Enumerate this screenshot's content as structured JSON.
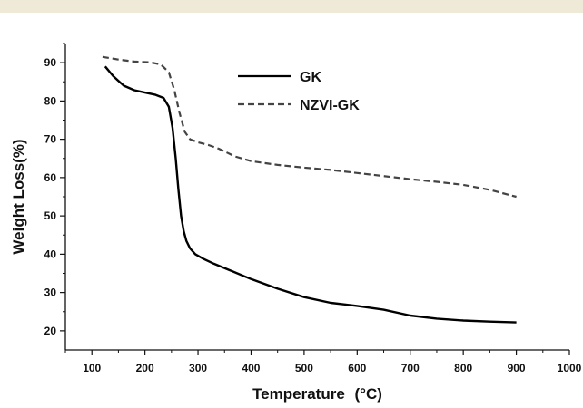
{
  "chart_data": {
    "type": "line",
    "xlabel": "Temperature",
    "xlabel_unit": "(°C)",
    "ylabel": "Weight Loss(%)",
    "xlim": [
      50,
      1000
    ],
    "ylim": [
      15,
      95
    ],
    "x_ticks": [
      100,
      200,
      300,
      400,
      500,
      600,
      700,
      800,
      900,
      1000
    ],
    "y_ticks": [
      20,
      30,
      40,
      50,
      60,
      70,
      80,
      90
    ],
    "grid": false,
    "legend_position": "top-center",
    "series": [
      {
        "name": "GK",
        "style": "solid",
        "color": "#000000",
        "x": [
          125,
          140,
          160,
          180,
          200,
          220,
          235,
          245,
          252,
          258,
          263,
          268,
          273,
          278,
          285,
          295,
          310,
          330,
          360,
          400,
          450,
          500,
          550,
          600,
          650,
          700,
          750,
          800,
          850,
          900
        ],
        "y": [
          89,
          86.5,
          84,
          82.8,
          82.2,
          81.6,
          80.8,
          78.5,
          73,
          65,
          57,
          50,
          46,
          43.5,
          41.5,
          40,
          38.8,
          37.5,
          35.8,
          33.5,
          31,
          28.8,
          27.3,
          26.5,
          25.5,
          24,
          23.2,
          22.7,
          22.4,
          22.2
        ]
      },
      {
        "name": "NZVI-GK",
        "style": "dashed",
        "color": "#444444",
        "x": [
          120,
          150,
          180,
          210,
          230,
          245,
          255,
          265,
          275,
          285,
          300,
          320,
          340,
          370,
          400,
          450,
          500,
          550,
          600,
          650,
          700,
          750,
          800,
          850,
          900
        ],
        "y": [
          91.5,
          90.8,
          90.3,
          90.1,
          89.5,
          87.5,
          83,
          77,
          72,
          70,
          69.2,
          68.5,
          67.5,
          65.5,
          64.3,
          63.3,
          62.6,
          62,
          61.2,
          60.4,
          59.6,
          58.9,
          58.1,
          56.8,
          55
        ]
      }
    ]
  }
}
